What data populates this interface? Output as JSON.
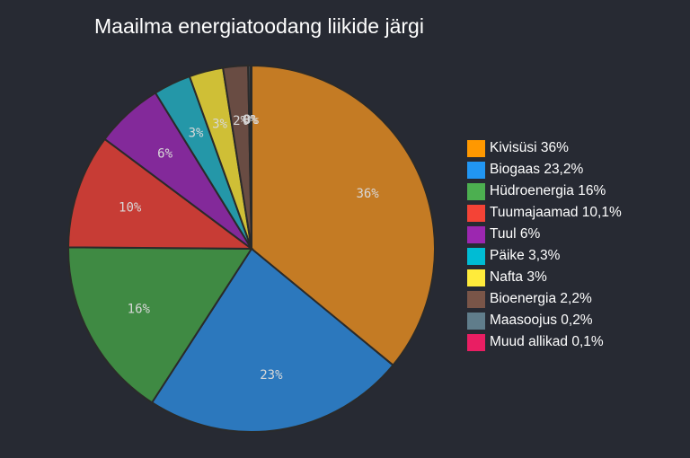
{
  "chart_data": {
    "type": "pie",
    "title": "Maailma energiatoodang liikide järgi",
    "categories": [
      "Kivisüsi",
      "Biogaas",
      "Hüdroenergia",
      "Tuumajaamad",
      "Tuul",
      "Päike",
      "Nafta",
      "Bioenergia",
      "Maasoojus",
      "Muud allikad"
    ],
    "values": [
      36,
      23.2,
      16,
      10.1,
      6,
      3.3,
      3,
      2.2,
      0.2,
      0.1
    ],
    "slice_labels": [
      "36%",
      "23%",
      "16%",
      "10%",
      "6%",
      "3%",
      "3%",
      "2%",
      "0%",
      "0%"
    ],
    "colors": [
      "#c47b24",
      "#2c78bd",
      "#3f8a43",
      "#c73c35",
      "#83299a",
      "#2497a8",
      "#cfbf36",
      "#694c43",
      "#5c7580",
      "#d21f5a"
    ],
    "legend": [
      "Kivisüsi 36%",
      "Biogaas 23,2%",
      "Hüdroenergia 16%",
      "Tuumajaamad 10,1%",
      "Tuul 6%",
      "Päike 3,3%",
      "Nafta 3%",
      "Bioenergia 2,2%",
      "Maasoojus 0,2%",
      "Muud allikad 0,1%"
    ],
    "legend_colors": [
      "#ff9800",
      "#2196f3",
      "#4caf50",
      "#f44336",
      "#9c27b0",
      "#00bcd4",
      "#ffeb3b",
      "#795548",
      "#607d8b",
      "#e91e63"
    ],
    "legend_position": "right",
    "start_angle_deg": 0,
    "direction": "clockwise"
  }
}
